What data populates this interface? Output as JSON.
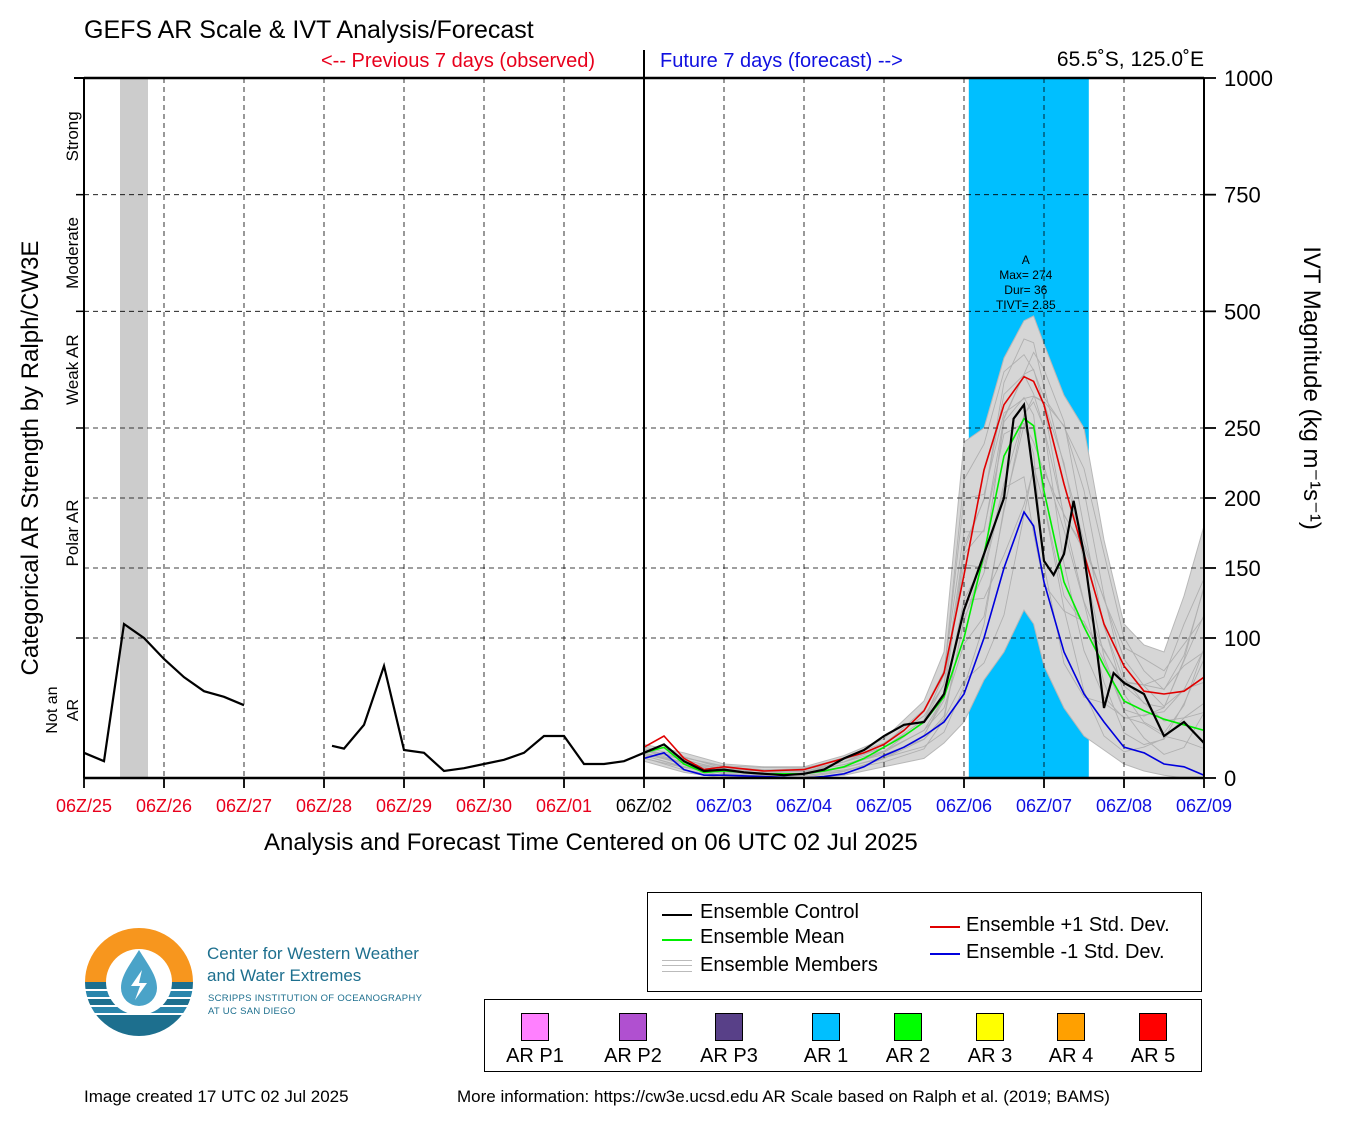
{
  "title": "GEFS AR Scale & IVT Analysis/Forecast",
  "prev_label": "<-- Previous 7 days (observed)",
  "future_label": "Future 7 days (forecast) -->",
  "location": "65.5˚S, 125.0˚E",
  "footer_left": "Image created 17 UTC 02 Jul 2025",
  "footer_right": "More information: https://cw3e.ucsd.edu AR Scale based on Ralph et al. (2019; BAMS)",
  "logo": {
    "name_line1": "Center for Western Weather",
    "name_line2": "and Water Extremes",
    "sub_line1": "SCRIPPS INSTITUTION OF OCEANOGRAPHY",
    "sub_line2": "AT UC SAN DIEGO",
    "colors": {
      "orange": "#f7961e",
      "teal": "#1d6f8e",
      "light_blue": "#4aa3c8"
    }
  },
  "legend": {
    "control": "Ensemble Control",
    "mean": "Ensemble Mean",
    "members": "Ensemble Members",
    "plus_std": "Ensemble +1 Std. Dev.",
    "minus_std": "Ensemble -1 Std. Dev."
  },
  "ar_categories": [
    {
      "label": "AR P1",
      "color": "#ff80ff"
    },
    {
      "label": "AR P2",
      "color": "#b050d0"
    },
    {
      "label": "AR P3",
      "color": "#584088"
    },
    {
      "label": "AR 1",
      "color": "#00bfff"
    },
    {
      "label": "AR 2",
      "color": "#00ff00"
    },
    {
      "label": "AR 3",
      "color": "#ffff00"
    },
    {
      "label": "AR 4",
      "color": "#ffa000"
    },
    {
      "label": "AR 5",
      "color": "#ff0000"
    }
  ],
  "chart_data": {
    "type": "line",
    "xlabel": "Analysis and Forecast Time Centered on 06 UTC 02 Jul 2025",
    "ylabel_left": "Categorical AR Strength by Ralph/CW3E",
    "ylabel_right": "IVT Magnitude (kg m⁻¹s⁻¹)",
    "x_unit": "days relative to 06Z/02 Jul 2025",
    "xlim": [
      -7,
      7
    ],
    "x_ticks": [
      {
        "x": -7,
        "label": "06Z/25",
        "color": "#e8001c"
      },
      {
        "x": -6,
        "label": "06Z/26",
        "color": "#e8001c"
      },
      {
        "x": -5,
        "label": "06Z/27",
        "color": "#e8001c"
      },
      {
        "x": -4,
        "label": "06Z/28",
        "color": "#e8001c"
      },
      {
        "x": -3,
        "label": "06Z/29",
        "color": "#e8001c"
      },
      {
        "x": -2,
        "label": "06Z/30",
        "color": "#e8001c"
      },
      {
        "x": -1,
        "label": "06Z/01",
        "color": "#e8001c"
      },
      {
        "x": 0,
        "label": "06Z/02",
        "color": "#000000"
      },
      {
        "x": 1,
        "label": "06Z/03",
        "color": "#1010e0"
      },
      {
        "x": 2,
        "label": "06Z/04",
        "color": "#1010e0"
      },
      {
        "x": 3,
        "label": "06Z/05",
        "color": "#1010e0"
      },
      {
        "x": 4,
        "label": "06Z/06",
        "color": "#1010e0"
      },
      {
        "x": 5,
        "label": "06Z/07",
        "color": "#1010e0"
      },
      {
        "x": 6,
        "label": "06Z/08",
        "color": "#1010e0"
      },
      {
        "x": 7,
        "label": "06Z/09",
        "color": "#1010e0"
      }
    ],
    "y_ticks": [
      {
        "value": 0,
        "label": "0"
      },
      {
        "value": 100,
        "label": "100"
      },
      {
        "value": 150,
        "label": "150"
      },
      {
        "value": 200,
        "label": "200"
      },
      {
        "value": 250,
        "label": "250"
      },
      {
        "value": 500,
        "label": "500"
      },
      {
        "value": 750,
        "label": "750"
      },
      {
        "value": 1000,
        "label": "1000"
      }
    ],
    "ylim": [
      0,
      1000
    ],
    "category_bands": [
      {
        "label": "Not an AR",
        "from": 0,
        "to": 100
      },
      {
        "label": "Polar AR",
        "from": 100,
        "to": 250
      },
      {
        "label": "Weak AR",
        "from": 250,
        "to": 500
      },
      {
        "label": "Moderate",
        "from": 500,
        "to": 750
      },
      {
        "label": "Strong",
        "from": 750,
        "to": 1000
      }
    ],
    "observed_ar_shading": {
      "x_from": -6.55,
      "x_to": -6.2,
      "color": "#cccccc"
    },
    "forecast_ar_shading": {
      "x_from": 4.06,
      "x_to": 5.56,
      "color": "#00bfff",
      "category": "AR 1"
    },
    "inner_ar_shape": {
      "x": [
        4.06,
        4.5,
        4.75,
        5.0,
        5.25,
        5.5,
        5.56
      ],
      "ivt": [
        0,
        40,
        100,
        75,
        30,
        0,
        0
      ]
    },
    "ar_annotation": {
      "label": "A",
      "max": "Max= 274",
      "dur": "Dur= 36",
      "tivt": "TIVT= 2.35"
    },
    "grid": true,
    "series": [
      {
        "name": "Ensemble Control",
        "color": "#000000",
        "segments": [
          {
            "x": [
              -7,
              -6.75,
              -6.5,
              -6.25,
              -6.0,
              -5.75,
              -5.5,
              -5.25,
              -5.0
            ],
            "y": [
              18,
              12,
              110,
              100,
              85,
              72,
              62,
              58,
              52
            ]
          },
          {
            "x": [
              -3.9,
              -3.75,
              -3.5,
              -3.25,
              -3.0,
              -2.75,
              -2.5,
              -2.25,
              -2.0,
              -1.75,
              -1.5,
              -1.25,
              -1.0,
              -0.75,
              -0.5,
              -0.25,
              0.0
            ],
            "y": [
              23,
              21,
              38,
              80,
              20,
              18,
              5,
              7,
              10,
              13,
              18,
              30,
              30,
              10,
              10,
              12,
              18
            ]
          },
          {
            "x": [
              0.0,
              0.25,
              0.5,
              0.75,
              1.0,
              1.25,
              1.5,
              1.75,
              2.0,
              2.25,
              2.5,
              2.75,
              3.0,
              3.25,
              3.5,
              3.75,
              4.0,
              4.25,
              4.5,
              4.62,
              4.75,
              4.87,
              5.0,
              5.12,
              5.25,
              5.37,
              5.5,
              5.62,
              5.75,
              5.87,
              6.0,
              6.25,
              6.5,
              6.75,
              7.0
            ],
            "y": [
              18,
              24,
              12,
              5,
              6,
              4,
              3,
              2,
              3,
              6,
              14,
              20,
              30,
              38,
              40,
              60,
              120,
              160,
              200,
              270,
              300,
              215,
              155,
              145,
              160,
              198,
              160,
              110,
              50,
              75,
              68,
              60,
              30,
              40,
              25
            ]
          }
        ]
      },
      {
        "name": "Ensemble Mean",
        "color": "#00ee00",
        "x": [
          0.0,
          0.25,
          0.5,
          0.75,
          1.0,
          1.5,
          2.0,
          2.25,
          2.5,
          2.75,
          3.0,
          3.25,
          3.5,
          3.75,
          4.0,
          4.25,
          4.5,
          4.75,
          4.87,
          5.0,
          5.25,
          5.5,
          5.75,
          6.0,
          6.25,
          6.5,
          6.75,
          7.0
        ],
        "y": [
          18,
          22,
          10,
          4,
          5,
          3,
          3,
          5,
          8,
          14,
          22,
          30,
          40,
          58,
          100,
          160,
          230,
          270,
          255,
          205,
          140,
          108,
          80,
          55,
          48,
          42,
          38,
          34
        ]
      },
      {
        "name": "Ensemble +1 Std. Dev.",
        "color": "#e00000",
        "x": [
          0.0,
          0.25,
          0.5,
          0.75,
          1.0,
          1.5,
          2.0,
          2.25,
          2.5,
          2.75,
          3.0,
          3.25,
          3.5,
          3.75,
          4.0,
          4.25,
          4.5,
          4.75,
          4.87,
          5.0,
          5.25,
          5.5,
          5.75,
          6.0,
          6.25,
          6.5,
          6.75,
          7.0
        ],
        "y": [
          22,
          30,
          14,
          6,
          8,
          5,
          6,
          10,
          14,
          18,
          24,
          34,
          48,
          75,
          145,
          220,
          300,
          360,
          350,
          300,
          210,
          160,
          110,
          80,
          62,
          60,
          62,
          72
        ]
      },
      {
        "name": "Ensemble -1 Std. Dev.",
        "color": "#0000dd",
        "x": [
          0.0,
          0.25,
          0.5,
          0.75,
          1.0,
          1.5,
          2.0,
          2.25,
          2.5,
          2.75,
          3.0,
          3.25,
          3.5,
          3.75,
          4.0,
          4.25,
          4.5,
          4.75,
          4.87,
          5.0,
          5.25,
          5.5,
          5.75,
          6.0,
          6.25,
          6.5,
          6.75,
          7.0
        ],
        "y": [
          14,
          18,
          6,
          2,
          2,
          1,
          0,
          1,
          3,
          8,
          16,
          22,
          30,
          40,
          60,
          100,
          150,
          190,
          180,
          140,
          90,
          60,
          40,
          22,
          18,
          10,
          8,
          2
        ]
      }
    ],
    "ensemble_members_envelope": {
      "color": "#b8b8b8",
      "x": [
        0.0,
        0.5,
        1.0,
        1.5,
        2.0,
        2.5,
        3.0,
        3.5,
        3.75,
        4.0,
        4.25,
        4.5,
        4.75,
        4.87,
        5.0,
        5.25,
        5.5,
        5.75,
        6.0,
        6.25,
        6.5,
        6.75,
        7.0
      ],
      "upper": [
        24,
        18,
        10,
        8,
        8,
        16,
        28,
        55,
        90,
        240,
        250,
        400,
        480,
        490,
        430,
        320,
        250,
        170,
        110,
        95,
        90,
        130,
        180
      ],
      "lower": [
        12,
        4,
        0,
        0,
        0,
        2,
        8,
        14,
        25,
        40,
        70,
        90,
        120,
        110,
        80,
        50,
        30,
        20,
        10,
        5,
        2,
        0,
        0
      ]
    }
  }
}
